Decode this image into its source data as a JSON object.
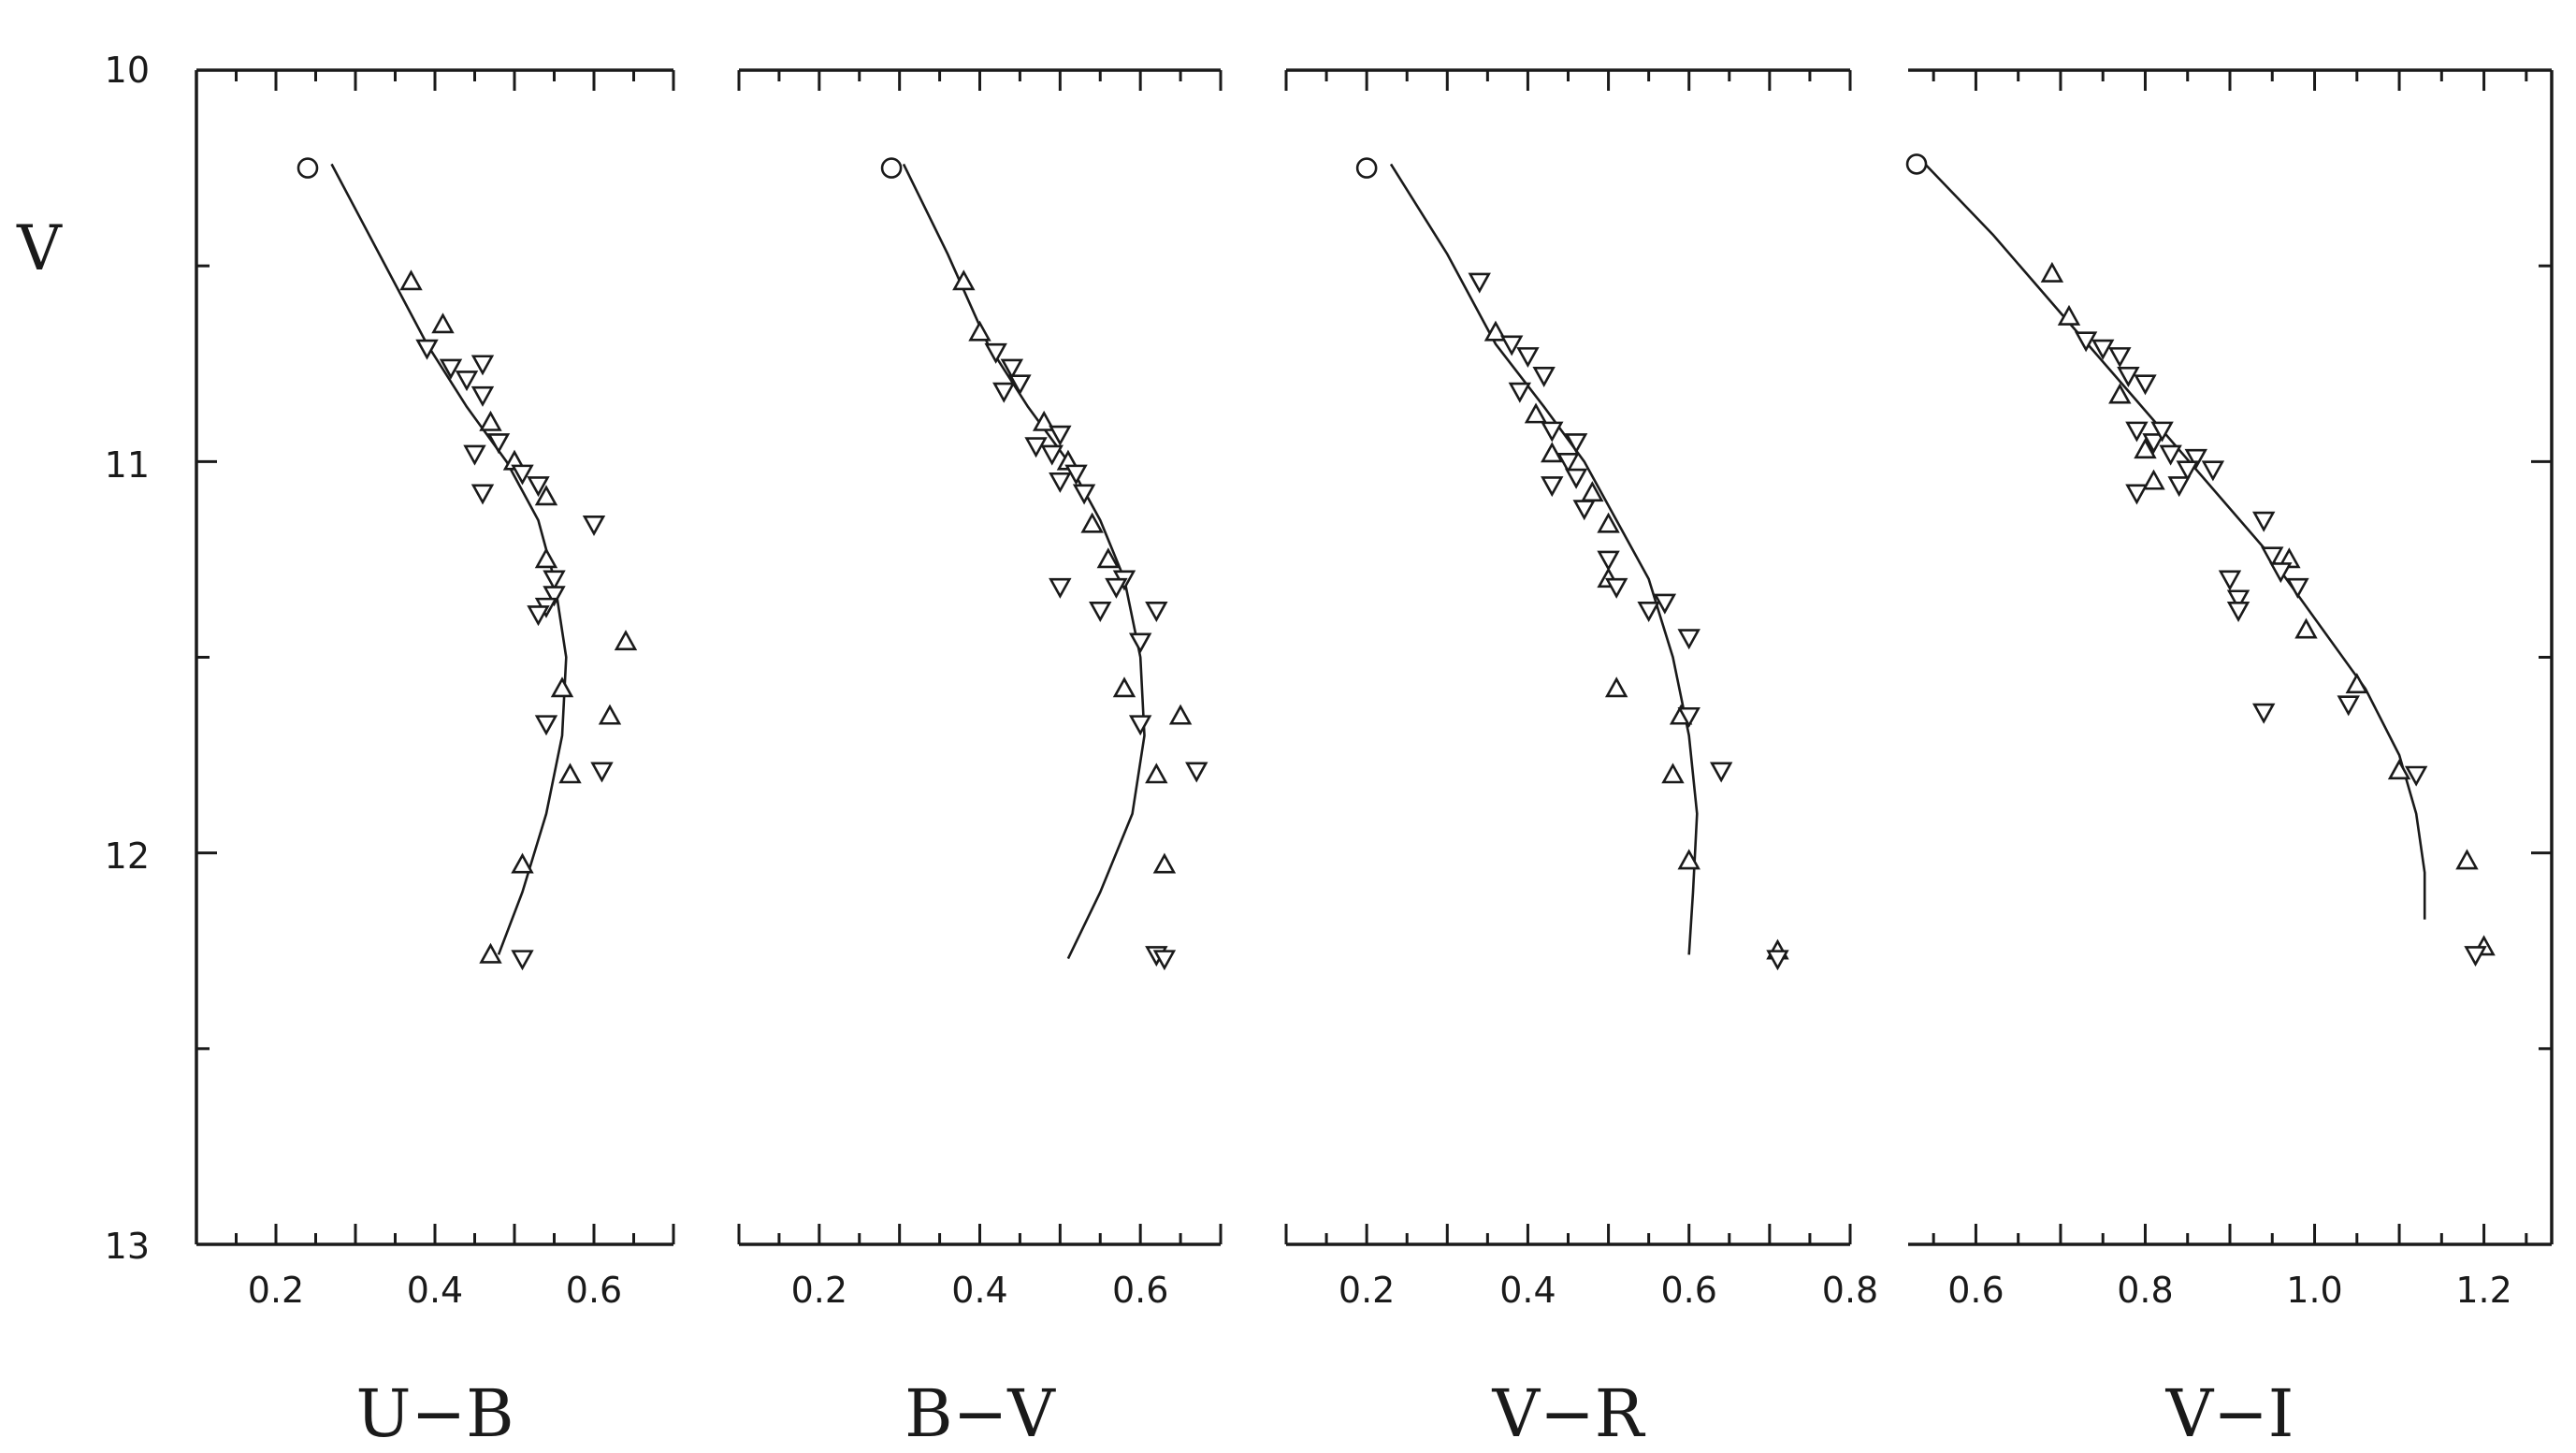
{
  "y_axis": {
    "label": "V",
    "ylim": [
      10,
      13
    ],
    "inverted": true,
    "ticks": [
      10,
      11,
      12,
      13
    ],
    "tick_labels": [
      "10",
      "11",
      "12",
      "13"
    ]
  },
  "chart_data": [
    {
      "type": "scatter",
      "xlabel": "U−B",
      "ylabel": "V",
      "xlim": [
        0.1,
        0.7
      ],
      "ylim": [
        10,
        13
      ],
      "x_ticks": [
        0.2,
        0.4,
        0.6
      ],
      "x_tick_labels": [
        "0.2",
        "0.4",
        "0.6"
      ],
      "grid": false,
      "points": [
        {
          "x": 0.24,
          "y": 10.25,
          "m": "o"
        },
        {
          "x": 0.37,
          "y": 10.54,
          "m": "^"
        },
        {
          "x": 0.41,
          "y": 10.65,
          "m": "^"
        },
        {
          "x": 0.39,
          "y": 10.71,
          "m": "v"
        },
        {
          "x": 0.42,
          "y": 10.76,
          "m": "v"
        },
        {
          "x": 0.44,
          "y": 10.79,
          "m": "v"
        },
        {
          "x": 0.46,
          "y": 10.75,
          "m": "v"
        },
        {
          "x": 0.46,
          "y": 10.83,
          "m": "v"
        },
        {
          "x": 0.47,
          "y": 10.9,
          "m": "^"
        },
        {
          "x": 0.48,
          "y": 10.95,
          "m": "v"
        },
        {
          "x": 0.45,
          "y": 10.98,
          "m": "v"
        },
        {
          "x": 0.5,
          "y": 11.0,
          "m": "^"
        },
        {
          "x": 0.51,
          "y": 11.03,
          "m": "v"
        },
        {
          "x": 0.46,
          "y": 11.08,
          "m": "v"
        },
        {
          "x": 0.53,
          "y": 11.06,
          "m": "v"
        },
        {
          "x": 0.54,
          "y": 11.09,
          "m": "^"
        },
        {
          "x": 0.6,
          "y": 11.16,
          "m": "v"
        },
        {
          "x": 0.54,
          "y": 11.25,
          "m": "^"
        },
        {
          "x": 0.55,
          "y": 11.3,
          "m": "v"
        },
        {
          "x": 0.55,
          "y": 11.34,
          "m": "v"
        },
        {
          "x": 0.54,
          "y": 11.37,
          "m": "v"
        },
        {
          "x": 0.53,
          "y": 11.39,
          "m": "v"
        },
        {
          "x": 0.64,
          "y": 11.46,
          "m": "^"
        },
        {
          "x": 0.56,
          "y": 11.58,
          "m": "^"
        },
        {
          "x": 0.62,
          "y": 11.65,
          "m": "^"
        },
        {
          "x": 0.54,
          "y": 11.67,
          "m": "v"
        },
        {
          "x": 0.61,
          "y": 11.79,
          "m": "v"
        },
        {
          "x": 0.57,
          "y": 11.8,
          "m": "^"
        },
        {
          "x": 0.51,
          "y": 12.03,
          "m": "^"
        },
        {
          "x": 0.47,
          "y": 12.26,
          "m": "^"
        },
        {
          "x": 0.51,
          "y": 12.27,
          "m": "v"
        }
      ],
      "curve": [
        [
          0.27,
          10.24
        ],
        [
          0.33,
          10.47
        ],
        [
          0.39,
          10.7
        ],
        [
          0.44,
          10.86
        ],
        [
          0.49,
          11.0
        ],
        [
          0.53,
          11.15
        ],
        [
          0.55,
          11.3
        ],
        [
          0.565,
          11.5
        ],
        [
          0.56,
          11.7
        ],
        [
          0.54,
          11.9
        ],
        [
          0.51,
          12.1
        ],
        [
          0.48,
          12.26
        ]
      ]
    },
    {
      "type": "scatter",
      "xlabel": "B−V",
      "ylabel": "V",
      "xlim": [
        0.1,
        0.7
      ],
      "ylim": [
        10,
        13
      ],
      "x_ticks": [
        0.2,
        0.4,
        0.6
      ],
      "x_tick_labels": [
        "0.2",
        "0.4",
        "0.6"
      ],
      "grid": false,
      "points": [
        {
          "x": 0.29,
          "y": 10.25,
          "m": "o"
        },
        {
          "x": 0.38,
          "y": 10.54,
          "m": "^"
        },
        {
          "x": 0.4,
          "y": 10.67,
          "m": "^"
        },
        {
          "x": 0.42,
          "y": 10.72,
          "m": "v"
        },
        {
          "x": 0.44,
          "y": 10.76,
          "m": "v"
        },
        {
          "x": 0.43,
          "y": 10.82,
          "m": "v"
        },
        {
          "x": 0.45,
          "y": 10.8,
          "m": "v"
        },
        {
          "x": 0.48,
          "y": 10.9,
          "m": "^"
        },
        {
          "x": 0.5,
          "y": 10.93,
          "m": "v"
        },
        {
          "x": 0.47,
          "y": 10.96,
          "m": "v"
        },
        {
          "x": 0.49,
          "y": 10.98,
          "m": "v"
        },
        {
          "x": 0.51,
          "y": 11.0,
          "m": "^"
        },
        {
          "x": 0.52,
          "y": 11.03,
          "m": "v"
        },
        {
          "x": 0.5,
          "y": 11.05,
          "m": "v"
        },
        {
          "x": 0.53,
          "y": 11.08,
          "m": "v"
        },
        {
          "x": 0.54,
          "y": 11.16,
          "m": "^"
        },
        {
          "x": 0.56,
          "y": 11.25,
          "m": "^"
        },
        {
          "x": 0.58,
          "y": 11.3,
          "m": "v"
        },
        {
          "x": 0.57,
          "y": 11.32,
          "m": "v"
        },
        {
          "x": 0.5,
          "y": 11.32,
          "m": "v"
        },
        {
          "x": 0.55,
          "y": 11.38,
          "m": "v"
        },
        {
          "x": 0.62,
          "y": 11.38,
          "m": "v"
        },
        {
          "x": 0.6,
          "y": 11.46,
          "m": "v"
        },
        {
          "x": 0.58,
          "y": 11.58,
          "m": "^"
        },
        {
          "x": 0.65,
          "y": 11.65,
          "m": "^"
        },
        {
          "x": 0.6,
          "y": 11.67,
          "m": "v"
        },
        {
          "x": 0.67,
          "y": 11.79,
          "m": "v"
        },
        {
          "x": 0.62,
          "y": 11.8,
          "m": "^"
        },
        {
          "x": 0.63,
          "y": 12.03,
          "m": "^"
        },
        {
          "x": 0.62,
          "y": 12.26,
          "m": "v"
        },
        {
          "x": 0.63,
          "y": 12.27,
          "m": "v"
        }
      ],
      "curve": [
        [
          0.305,
          10.24
        ],
        [
          0.36,
          10.47
        ],
        [
          0.41,
          10.7
        ],
        [
          0.46,
          10.86
        ],
        [
          0.51,
          11.0
        ],
        [
          0.55,
          11.15
        ],
        [
          0.58,
          11.3
        ],
        [
          0.6,
          11.5
        ],
        [
          0.605,
          11.7
        ],
        [
          0.59,
          11.9
        ],
        [
          0.55,
          12.1
        ],
        [
          0.51,
          12.27
        ]
      ]
    },
    {
      "type": "scatter",
      "xlabel": "V−R",
      "ylabel": "V",
      "xlim": [
        0.1,
        0.8
      ],
      "ylim": [
        10,
        13
      ],
      "x_ticks": [
        0.2,
        0.4,
        0.6,
        0.8
      ],
      "x_tick_labels": [
        "0.2",
        "0.4",
        "0.6",
        "0.8"
      ],
      "grid": false,
      "points": [
        {
          "x": 0.2,
          "y": 10.25,
          "m": "o"
        },
        {
          "x": 0.34,
          "y": 10.54,
          "m": "v"
        },
        {
          "x": 0.36,
          "y": 10.67,
          "m": "^"
        },
        {
          "x": 0.38,
          "y": 10.7,
          "m": "v"
        },
        {
          "x": 0.4,
          "y": 10.73,
          "m": "v"
        },
        {
          "x": 0.42,
          "y": 10.78,
          "m": "v"
        },
        {
          "x": 0.39,
          "y": 10.82,
          "m": "v"
        },
        {
          "x": 0.41,
          "y": 10.88,
          "m": "^"
        },
        {
          "x": 0.43,
          "y": 10.92,
          "m": "v"
        },
        {
          "x": 0.46,
          "y": 10.95,
          "m": "v"
        },
        {
          "x": 0.43,
          "y": 10.98,
          "m": "^"
        },
        {
          "x": 0.45,
          "y": 11.0,
          "m": "v"
        },
        {
          "x": 0.46,
          "y": 11.04,
          "m": "v"
        },
        {
          "x": 0.43,
          "y": 11.06,
          "m": "v"
        },
        {
          "x": 0.48,
          "y": 11.08,
          "m": "^"
        },
        {
          "x": 0.47,
          "y": 11.12,
          "m": "v"
        },
        {
          "x": 0.5,
          "y": 11.16,
          "m": "^"
        },
        {
          "x": 0.5,
          "y": 11.25,
          "m": "v"
        },
        {
          "x": 0.5,
          "y": 11.3,
          "m": "^"
        },
        {
          "x": 0.51,
          "y": 11.32,
          "m": "v"
        },
        {
          "x": 0.57,
          "y": 11.36,
          "m": "v"
        },
        {
          "x": 0.55,
          "y": 11.38,
          "m": "v"
        },
        {
          "x": 0.6,
          "y": 11.45,
          "m": "v"
        },
        {
          "x": 0.51,
          "y": 11.58,
          "m": "^"
        },
        {
          "x": 0.59,
          "y": 11.65,
          "m": "^"
        },
        {
          "x": 0.6,
          "y": 11.65,
          "m": "v"
        },
        {
          "x": 0.64,
          "y": 11.79,
          "m": "v"
        },
        {
          "x": 0.58,
          "y": 11.8,
          "m": "^"
        },
        {
          "x": 0.6,
          "y": 12.02,
          "m": "^"
        },
        {
          "x": 0.71,
          "y": 12.25,
          "m": "^"
        },
        {
          "x": 0.71,
          "y": 12.27,
          "m": "v"
        }
      ],
      "curve": [
        [
          0.23,
          10.24
        ],
        [
          0.3,
          10.47
        ],
        [
          0.36,
          10.7
        ],
        [
          0.42,
          10.86
        ],
        [
          0.47,
          11.0
        ],
        [
          0.51,
          11.15
        ],
        [
          0.55,
          11.3
        ],
        [
          0.58,
          11.5
        ],
        [
          0.6,
          11.7
        ],
        [
          0.61,
          11.9
        ],
        [
          0.605,
          12.1
        ],
        [
          0.6,
          12.26
        ]
      ]
    },
    {
      "type": "scatter",
      "xlabel": "V−I",
      "ylabel": "V",
      "xlim": [
        0.52,
        1.28
      ],
      "ylim": [
        10,
        13
      ],
      "x_ticks": [
        0.6,
        0.8,
        1.0,
        1.2
      ],
      "x_tick_labels": [
        "0.6",
        "0.8",
        "1.0",
        "1.2"
      ],
      "grid": false,
      "points": [
        {
          "x": 0.53,
          "y": 10.24,
          "m": "o"
        },
        {
          "x": 0.69,
          "y": 10.52,
          "m": "^"
        },
        {
          "x": 0.71,
          "y": 10.63,
          "m": "^"
        },
        {
          "x": 0.73,
          "y": 10.69,
          "m": "v"
        },
        {
          "x": 0.75,
          "y": 10.71,
          "m": "v"
        },
        {
          "x": 0.77,
          "y": 10.73,
          "m": "v"
        },
        {
          "x": 0.78,
          "y": 10.78,
          "m": "v"
        },
        {
          "x": 0.77,
          "y": 10.83,
          "m": "^"
        },
        {
          "x": 0.8,
          "y": 10.8,
          "m": "v"
        },
        {
          "x": 0.79,
          "y": 10.92,
          "m": "v"
        },
        {
          "x": 0.81,
          "y": 10.95,
          "m": "v"
        },
        {
          "x": 0.82,
          "y": 10.92,
          "m": "v"
        },
        {
          "x": 0.8,
          "y": 10.97,
          "m": "^"
        },
        {
          "x": 0.83,
          "y": 10.98,
          "m": "v"
        },
        {
          "x": 0.86,
          "y": 10.99,
          "m": "v"
        },
        {
          "x": 0.85,
          "y": 11.02,
          "m": "v"
        },
        {
          "x": 0.88,
          "y": 11.02,
          "m": "v"
        },
        {
          "x": 0.81,
          "y": 11.05,
          "m": "^"
        },
        {
          "x": 0.84,
          "y": 11.06,
          "m": "v"
        },
        {
          "x": 0.79,
          "y": 11.08,
          "m": "v"
        },
        {
          "x": 0.94,
          "y": 11.15,
          "m": "v"
        },
        {
          "x": 0.95,
          "y": 11.24,
          "m": "v"
        },
        {
          "x": 0.97,
          "y": 11.25,
          "m": "^"
        },
        {
          "x": 0.96,
          "y": 11.28,
          "m": "v"
        },
        {
          "x": 0.9,
          "y": 11.3,
          "m": "v"
        },
        {
          "x": 0.98,
          "y": 11.32,
          "m": "v"
        },
        {
          "x": 0.91,
          "y": 11.35,
          "m": "v"
        },
        {
          "x": 0.91,
          "y": 11.38,
          "m": "v"
        },
        {
          "x": 0.99,
          "y": 11.43,
          "m": "^"
        },
        {
          "x": 1.05,
          "y": 11.57,
          "m": "^"
        },
        {
          "x": 1.04,
          "y": 11.62,
          "m": "v"
        },
        {
          "x": 0.94,
          "y": 11.64,
          "m": "v"
        },
        {
          "x": 1.1,
          "y": 11.79,
          "m": "^"
        },
        {
          "x": 1.12,
          "y": 11.8,
          "m": "v"
        },
        {
          "x": 1.18,
          "y": 12.02,
          "m": "^"
        },
        {
          "x": 1.2,
          "y": 12.24,
          "m": "^"
        },
        {
          "x": 1.19,
          "y": 12.26,
          "m": "v"
        }
      ],
      "curve": [
        [
          0.54,
          10.24
        ],
        [
          0.62,
          10.42
        ],
        [
          0.7,
          10.62
        ],
        [
          0.78,
          10.82
        ],
        [
          0.86,
          11.02
        ],
        [
          0.94,
          11.22
        ],
        [
          1.0,
          11.4
        ],
        [
          1.06,
          11.58
        ],
        [
          1.1,
          11.75
        ],
        [
          1.12,
          11.9
        ],
        [
          1.13,
          12.05
        ],
        [
          1.13,
          12.17
        ]
      ]
    }
  ]
}
